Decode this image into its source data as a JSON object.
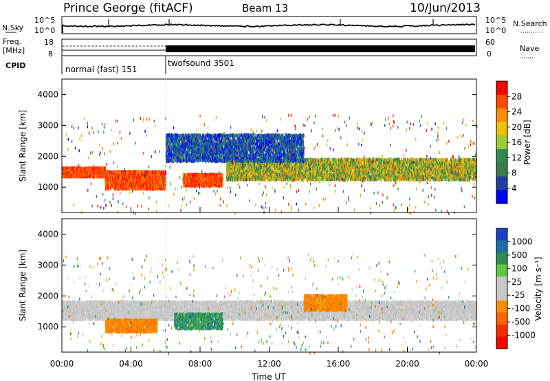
{
  "header": {
    "station": "Prince George (fitACF)",
    "beam": "Beam 13",
    "date": "10/Jun/2013"
  },
  "noise_panel": {
    "left_label": "N.Sky",
    "left_ticks": [
      "10^5",
      "10^0"
    ],
    "right_ticks": [
      "10^5",
      "10^0"
    ],
    "right_label": "N.Search"
  },
  "freq_panel": {
    "left_label_lines": [
      "Freq.",
      "[MHz]"
    ],
    "left_ticks": [
      "18",
      "8"
    ],
    "right_ticks": [
      "60",
      "0"
    ],
    "right_label": "Nave"
  },
  "cpid_panel": {
    "label": "CPID",
    "modes": [
      {
        "name": "normal (fast) 151",
        "start": "00:00"
      },
      {
        "name": "twofsound 3501",
        "start": "06:00"
      }
    ]
  },
  "chart_data": [
    {
      "type": "heatmap",
      "name": "power",
      "xlabel": "",
      "ylabel": "Slant Range [km]",
      "x_range": [
        "00:00",
        "24:00"
      ],
      "ylim": [
        180,
        4500
      ],
      "yticks": [
        1000,
        2000,
        3000,
        4000
      ],
      "colorbar": {
        "label": "Power [dB]",
        "ticks": [
          28,
          24,
          20,
          16,
          12,
          8,
          4
        ],
        "colors": [
          "#ff0000",
          "#ff4a00",
          "#ff8c00",
          "#f0c000",
          "#9acd32",
          "#2e8b57",
          "#3b7a52",
          "#1e3fa0",
          "#0000ff"
        ]
      },
      "regions": [
        {
          "t0": 0.0,
          "t1": 2.5,
          "r0": 1300,
          "r1": 1600,
          "level": "high"
        },
        {
          "t0": 2.5,
          "t1": 6.0,
          "r0": 900,
          "r1": 1500,
          "level": "high"
        },
        {
          "t0": 7.0,
          "t1": 9.3,
          "r0": 1000,
          "r1": 1400,
          "level": "high"
        },
        {
          "t0": 9.5,
          "t1": 24.0,
          "r0": 1200,
          "r1": 1900,
          "level": "mid"
        },
        {
          "t0": 6.0,
          "t1": 14.0,
          "r0": 1800,
          "r1": 2700,
          "level": "low"
        }
      ]
    },
    {
      "type": "heatmap",
      "name": "velocity",
      "xlabel": "Time UT",
      "ylabel": "Slant Range [km]",
      "x_range": [
        "00:00",
        "24:00"
      ],
      "xticks": [
        "00:00",
        "04:00",
        "08:00",
        "12:00",
        "16:00",
        "20:00",
        "00:00"
      ],
      "ylim": [
        180,
        4500
      ],
      "yticks": [
        1000,
        2000,
        3000,
        4000
      ],
      "colorbar": {
        "label": "Velocity [m s⁻¹]",
        "ticks": [
          1000,
          500,
          100,
          25,
          -25,
          -100,
          -500,
          -1000
        ],
        "colors": [
          "#1e3fc8",
          "#1e6ea8",
          "#2e8b57",
          "#5cc83c",
          "#c8c8c8",
          "#c8c8c8",
          "#ff8c00",
          "#ff6400",
          "#ff2a00",
          "#ff0000"
        ]
      },
      "regions": [
        {
          "t0": 0.0,
          "t1": 24.0,
          "r0": 1200,
          "r1": 1800,
          "level": "near-zero"
        },
        {
          "t0": 2.5,
          "t1": 5.5,
          "r0": 800,
          "r1": 1200,
          "level": "negative"
        },
        {
          "t0": 6.5,
          "t1": 9.3,
          "r0": 900,
          "r1": 1400,
          "level": "positive"
        },
        {
          "t0": 14.0,
          "t1": 16.5,
          "r0": 1500,
          "r1": 2000,
          "level": "negative"
        }
      ]
    }
  ]
}
